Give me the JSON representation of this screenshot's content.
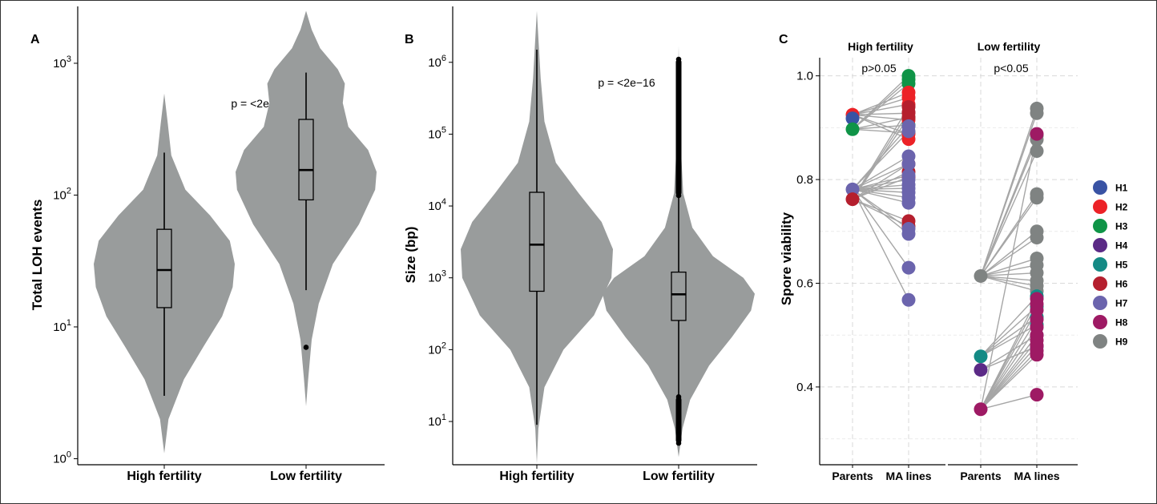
{
  "colors": {
    "violin": "#999c9c",
    "axis": "#000000",
    "grid": "#d9d9d9",
    "connector": "#a6a6a6",
    "haplotypes": {
      "H1": "#3953a4",
      "H2": "#ec2227",
      "H3": "#0f9447",
      "H4": "#5b2a86",
      "H5": "#148a85",
      "H6": "#b51f2e",
      "H7": "#6b64ad",
      "H8": "#9e1a64",
      "H9": "#7f8382"
    }
  },
  "chart_data": [
    {
      "panel": "A",
      "type": "violin",
      "ylabel": "Total LOH events",
      "scale": "log10",
      "ylim": [
        0.9,
        2700
      ],
      "yticks": [
        1,
        10,
        100,
        1000
      ],
      "ytick_base": "10",
      "ytick_exps": [
        "0",
        "1",
        "2",
        "3"
      ],
      "categories": [
        "High fertility",
        "Low fertility"
      ],
      "annotation": "p = <2e−16",
      "groups": [
        {
          "name": "High fertility",
          "min": 1.1,
          "max": 590,
          "box": {
            "q1": 14,
            "median": 27,
            "q3": 55,
            "whisker_low": 3,
            "whisker_high": 210
          },
          "outliers": [],
          "density": [
            [
              1.1,
              0
            ],
            [
              2,
              0.06
            ],
            [
              4,
              0.28
            ],
            [
              7,
              0.55
            ],
            [
              12,
              0.82
            ],
            [
              20,
              0.97
            ],
            [
              30,
              1
            ],
            [
              45,
              0.93
            ],
            [
              70,
              0.65
            ],
            [
              110,
              0.3
            ],
            [
              200,
              0.1
            ],
            [
              350,
              0.05
            ],
            [
              590,
              0
            ]
          ]
        },
        {
          "name": "Low fertility",
          "min": 2.5,
          "max": 2500,
          "box": {
            "q1": 92,
            "median": 155,
            "q3": 375,
            "whisker_low": 19,
            "whisker_high": 850
          },
          "outliers": [
            7
          ],
          "density": [
            [
              2.5,
              0
            ],
            [
              4,
              0.03
            ],
            [
              8,
              0.08
            ],
            [
              15,
              0.18
            ],
            [
              30,
              0.38
            ],
            [
              60,
              0.75
            ],
            [
              110,
              0.98
            ],
            [
              150,
              1
            ],
            [
              220,
              0.88
            ],
            [
              330,
              0.6
            ],
            [
              500,
              0.52
            ],
            [
              700,
              0.55
            ],
            [
              900,
              0.45
            ],
            [
              1300,
              0.2
            ],
            [
              1800,
              0.08
            ],
            [
              2500,
              0
            ]
          ]
        }
      ]
    },
    {
      "panel": "B",
      "type": "violin",
      "ylabel": "Size (bp)",
      "scale": "log10",
      "ylim": [
        2.5,
        6000000
      ],
      "yticks": [
        10,
        100,
        1000,
        10000,
        100000,
        1000000
      ],
      "ytick_base": "10",
      "ytick_exps": [
        "1",
        "2",
        "3",
        "4",
        "5",
        "6"
      ],
      "categories": [
        "High fertility",
        "Low fertility"
      ],
      "annotation": "p = <2e−16",
      "groups": [
        {
          "name": "High fertility",
          "min": 2.6,
          "max": 5200000,
          "box": {
            "q1": 650,
            "median": 2900,
            "q3": 15500,
            "whisker_low": 9,
            "whisker_high": 1500000
          },
          "outliers": [],
          "density": [
            [
              2.6,
              0
            ],
            [
              8,
              0.02
            ],
            [
              30,
              0.1
            ],
            [
              100,
              0.35
            ],
            [
              300,
              0.75
            ],
            [
              1000,
              0.98
            ],
            [
              2500,
              1
            ],
            [
              6000,
              0.85
            ],
            [
              15000,
              0.55
            ],
            [
              40000,
              0.25
            ],
            [
              150000,
              0.1
            ],
            [
              600000,
              0.05
            ],
            [
              5200000,
              0
            ]
          ]
        },
        {
          "name": "Low fertility",
          "min": 3.2,
          "max": 1700000,
          "box": {
            "q1": 255,
            "median": 590,
            "q3": 1200,
            "whisker_low": 20,
            "whisker_high": 13000
          },
          "outliers": [
            5,
            6,
            7,
            8,
            10,
            12,
            14,
            17,
            19,
            22,
            14000,
            20000,
            30000,
            50000,
            80000,
            120000,
            200000,
            300000,
            450000,
            650000,
            850000,
            1000000,
            1100000
          ],
          "density": [
            [
              3.2,
              0
            ],
            [
              8,
              0.05
            ],
            [
              20,
              0.15
            ],
            [
              60,
              0.4
            ],
            [
              150,
              0.7
            ],
            [
              350,
              0.95
            ],
            [
              600,
              1
            ],
            [
              1000,
              0.85
            ],
            [
              2000,
              0.45
            ],
            [
              5000,
              0.18
            ],
            [
              15000,
              0.06
            ],
            [
              100000,
              0.02
            ],
            [
              1700000,
              0
            ]
          ]
        }
      ]
    },
    {
      "panel": "C",
      "type": "scatter",
      "ylabel": "Spore viability",
      "ylim": [
        0.25,
        1.035
      ],
      "yticks": [
        0.4,
        0.6,
        0.8,
        1.0
      ],
      "ytick_labels": [
        "0.4",
        "0.6",
        "0.8",
        "1.0"
      ],
      "minor_grid": [
        0.3,
        0.5,
        0.7,
        0.9
      ],
      "facets": [
        {
          "label": "High fertility",
          "annotation": "p>0.05",
          "x_categories": [
            "Parents",
            "MA lines"
          ],
          "parents": [
            {
              "hap": "H2",
              "value": 0.925
            },
            {
              "hap": "H1",
              "value": 0.918
            },
            {
              "hap": "H3",
              "value": 0.897
            },
            {
              "hap": "H7",
              "value": 0.781
            },
            {
              "hap": "H6",
              "value": 0.762
            }
          ],
          "lines": [
            {
              "hap": "H3",
              "from": 0.897,
              "values": [
                1.0,
                0.993,
                0.985,
                0.92,
                0.905,
                0.89
              ]
            },
            {
              "hap": "H2",
              "from": 0.925,
              "values": [
                0.968,
                0.958,
                0.945,
                0.928,
                0.915,
                0.888,
                0.878
              ]
            },
            {
              "hap": "H6",
              "from": 0.762,
              "values": [
                0.94,
                0.93,
                0.92,
                0.83,
                0.815,
                0.805,
                0.72,
                0.71
              ]
            },
            {
              "hap": "H7",
              "from": 0.781,
              "values": [
                0.903,
                0.893,
                0.845,
                0.83,
                0.808,
                0.8,
                0.79,
                0.783,
                0.775,
                0.765,
                0.755,
                0.705,
                0.695,
                0.63,
                0.568
              ]
            }
          ]
        },
        {
          "label": "Low fertility",
          "annotation": "p<0.05",
          "x_categories": [
            "Parents",
            "MA lines"
          ],
          "parents": [
            {
              "hap": "H9",
              "value": 0.614
            },
            {
              "hap": "H5",
              "value": 0.459
            },
            {
              "hap": "H4",
              "value": 0.433
            },
            {
              "hap": "H8",
              "value": 0.357
            }
          ],
          "lines": [
            {
              "hap": "H9",
              "from": 0.614,
              "values": [
                0.937,
                0.928,
                0.885,
                0.877,
                0.855,
                0.772,
                0.765,
                0.7,
                0.688,
                0.648,
                0.635,
                0.62,
                0.605,
                0.595,
                0.585
              ]
            },
            {
              "hap": "H5",
              "from": 0.459,
              "values": [
                0.575,
                0.555,
                0.535,
                0.52
              ]
            },
            {
              "hap": "H4",
              "from": 0.433,
              "values": [
                0.5,
                0.478
              ]
            },
            {
              "hap": "H8",
              "from": 0.357,
              "values": [
                0.888,
                0.57,
                0.56,
                0.548,
                0.53,
                0.515,
                0.5,
                0.49,
                0.48,
                0.47,
                0.462,
                0.385
              ]
            }
          ]
        }
      ],
      "legend_position": "right",
      "legend": [
        "H1",
        "H2",
        "H3",
        "H4",
        "H5",
        "H6",
        "H7",
        "H8",
        "H9"
      ]
    }
  ]
}
